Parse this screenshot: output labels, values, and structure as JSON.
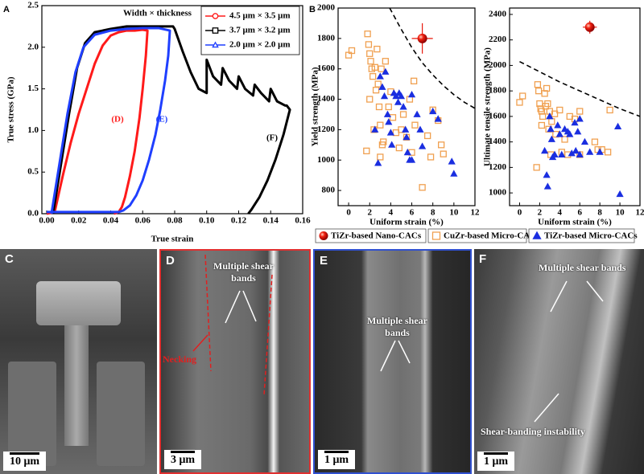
{
  "chart_data": [
    {
      "type": "line",
      "panel_label": "A",
      "xlabel": "True strain",
      "ylabel": "True stress (GPa)",
      "xlim": [
        -0.003,
        0.16
      ],
      "ylim": [
        0,
        2.5
      ],
      "xticks": [
        {
          "value": 0,
          "label": "0.00"
        },
        {
          "value": 0.02,
          "label": "0.02"
        },
        {
          "value": 0.04,
          "label": "0.04"
        },
        {
          "value": 0.06,
          "label": "0.06"
        },
        {
          "value": 0.08,
          "label": "0.08"
        },
        {
          "value": 0.1,
          "label": "0.10"
        },
        {
          "value": 0.12,
          "label": "0.12"
        },
        {
          "value": 0.14,
          "label": "0.14"
        },
        {
          "value": 0.16,
          "label": "0.16"
        }
      ],
      "yticks": [
        {
          "value": 0,
          "label": "0.0"
        },
        0.5,
        {
          "value": 1,
          "label": "1.0"
        },
        1.5,
        {
          "value": 2,
          "label": "2.0"
        },
        2.5
      ],
      "legend_title": "Width × thickness",
      "legend": "upper right",
      "series": [
        {
          "name": "4.5 μm × 3.5 μm",
          "color": "#ff1a1a",
          "marker": "circle",
          "x": [
            0,
            0.005,
            0.01,
            0.015,
            0.02,
            0.025,
            0.03,
            0.035,
            0.04,
            0.045,
            0.05,
            0.055,
            0.06,
            0.063,
            0.062,
            0.06,
            0.058,
            0.055,
            0.052,
            0.049,
            0.047,
            0.045,
            0.042
          ],
          "values": [
            0,
            0.02,
            0.45,
            0.85,
            1.2,
            1.5,
            1.8,
            2.02,
            2.14,
            2.18,
            2.2,
            2.2,
            2.21,
            2.2,
            1.9,
            1.5,
            1.15,
            0.75,
            0.45,
            0.2,
            0.08,
            0.02,
            0
          ]
        },
        {
          "name": "3.7 μm × 3.2 μm",
          "color": "#000000",
          "marker": "square",
          "x": [
            0.004,
            0.009,
            0.014,
            0.019,
            0.024,
            0.03,
            0.04,
            0.05,
            0.06,
            0.07,
            0.079,
            0.08,
            0.085,
            0.09,
            0.095,
            0.1,
            0.1,
            0.104,
            0.109,
            0.11,
            0.114,
            0.119,
            0.12,
            0.124,
            0.129,
            0.13,
            0.134,
            0.139,
            0.14,
            0.144,
            0.149,
            0.15,
            0.152,
            0.148,
            0.143,
            0.138,
            0.133,
            0.128,
            0.126
          ],
          "values": [
            0,
            0.6,
            1.2,
            1.75,
            2.05,
            2.18,
            2.22,
            2.25,
            2.25,
            2.25,
            2.25,
            2.22,
            1.95,
            1.7,
            1.5,
            1.45,
            1.85,
            1.65,
            1.55,
            1.75,
            1.6,
            1.5,
            1.65,
            1.5,
            1.42,
            1.55,
            1.45,
            1.35,
            1.5,
            1.35,
            1.3,
            1.3,
            1.25,
            0.95,
            0.65,
            0.4,
            0.2,
            0.05,
            0
          ]
        },
        {
          "name": "2.0 μm × 2.0 μm",
          "color": "#1f3fff",
          "marker": "triangle",
          "x": [
            0.003,
            0.008,
            0.013,
            0.018,
            0.023,
            0.03,
            0.04,
            0.05,
            0.06,
            0.07,
            0.077,
            0.076,
            0.074,
            0.071,
            0.068,
            0.064,
            0.06,
            0.056,
            0.052,
            0.048,
            0.045,
            0.043,
            0.02,
            0
          ],
          "values": [
            0,
            0.6,
            1.2,
            1.7,
            2.0,
            2.15,
            2.2,
            2.22,
            2.23,
            2.23,
            2.2,
            1.9,
            1.6,
            1.25,
            0.95,
            0.65,
            0.4,
            0.22,
            0.1,
            0.04,
            0.02,
            0.02,
            0.02,
            0.02
          ]
        }
      ],
      "annotations": [
        {
          "text": "(D)",
          "color": "#ff1a1a"
        },
        {
          "text": "(E)",
          "color": "#1f3fff"
        },
        {
          "text": "(F)",
          "color": "#000000"
        }
      ]
    },
    {
      "type": "scatter",
      "panel_label": "B",
      "xlabel": "Uniform strain (%)",
      "ylabel": "Yield strength (MPa)",
      "xlim": [
        -1,
        12
      ],
      "ylim": [
        700,
        2000
      ],
      "xticks": [
        0,
        2,
        4,
        6,
        8,
        10,
        12
      ],
      "yticks": [
        800,
        1000,
        1200,
        1400,
        1600,
        1800,
        2000
      ],
      "legend": "below",
      "series": [
        {
          "name": "TiZr-based Nano-CACs",
          "color": "#e8180c",
          "marker": "circle",
          "filled": true,
          "x": [
            7
          ],
          "values": [
            1800
          ],
          "xerr": [
            1
          ],
          "yerr": [
            100
          ]
        },
        {
          "name": "CuZr-based Micro-CACs",
          "color": "#f0a050",
          "marker": "square",
          "filled": false,
          "x": [
            0,
            0.3,
            1.8,
            1.9,
            2,
            2.1,
            2.2,
            2.3,
            2.5,
            2.7,
            2.8,
            2.6,
            2.4,
            2.9,
            3.1,
            3.5,
            3,
            3.3,
            3.2,
            3,
            1.7,
            2,
            3.8,
            4,
            4.2,
            4.5,
            5,
            5.2,
            5.5,
            6,
            6.2,
            6.3,
            7,
            7.5,
            7.8,
            8,
            8.5,
            8.8,
            9,
            4.8,
            5.8
          ],
          "values": [
            1690,
            1720,
            1830,
            1760,
            1700,
            1650,
            1600,
            1550,
            1610,
            1730,
            1500,
            1460,
            1200,
            1350,
            1600,
            1650,
            1230,
            1120,
            1100,
            1020,
            1060,
            1400,
            1350,
            1450,
            1280,
            1180,
            1200,
            1300,
            1150,
            1050,
            1520,
            1230,
            820,
            1160,
            1020,
            1330,
            1260,
            1100,
            1040,
            1080,
            1400
          ]
        },
        {
          "name": "TiZr-based Micro-CACs",
          "color": "#1a2ee0",
          "marker": "triangle",
          "filled": true,
          "x": [
            2.5,
            2.8,
            3,
            3.2,
            3.4,
            3.5,
            3.7,
            3.8,
            4,
            4.1,
            4.3,
            4.5,
            4.7,
            4.8,
            5,
            5.2,
            5.4,
            5.5,
            5.6,
            5.8,
            6,
            6,
            6.5,
            6.8,
            7,
            8,
            8.5,
            9.8,
            10
          ],
          "values": [
            1200,
            980,
            1550,
            1480,
            1420,
            1580,
            1300,
            1250,
            1180,
            1100,
            1440,
            1420,
            1380,
            1440,
            1420,
            1350,
            1200,
            1150,
            1050,
            1000,
            1430,
            1000,
            1300,
            1200,
            1090,
            1320,
            1270,
            990,
            910
          ]
        }
      ],
      "bound": {
        "x": [
          3.9,
          5,
          6,
          7,
          8,
          9,
          10,
          11,
          12
        ],
        "values": [
          2000,
          1860,
          1740,
          1640,
          1560,
          1490,
          1430,
          1380,
          1340
        ]
      }
    },
    {
      "type": "scatter",
      "xlabel": "Uniform strain (%)",
      "ylabel": "Ultimate tensile strength (MPa)",
      "xlim": [
        -1,
        12
      ],
      "ylim": [
        900,
        2450
      ],
      "xticks": [
        0,
        2,
        4,
        6,
        8,
        10,
        12
      ],
      "yticks": [
        1000,
        1200,
        1400,
        1600,
        1800,
        2000,
        2200,
        2400
      ],
      "series": [
        {
          "color": "#e8180c",
          "marker": "circle",
          "filled": true,
          "x": [
            7
          ],
          "values": [
            2300
          ],
          "xerr": [
            0.7
          ],
          "yerr": [
            50
          ]
        },
        {
          "color": "#f0a050",
          "marker": "square",
          "filled": false,
          "x": [
            0,
            0.3,
            1.8,
            1.9,
            2,
            2.1,
            2.2,
            2.3,
            2.5,
            2.6,
            2.7,
            2.8,
            3,
            3.2,
            3.5,
            3.6,
            2.9,
            3.1,
            1.7,
            2.2,
            4,
            4.2,
            4.5,
            5,
            5.5,
            6,
            6,
            7.5,
            7.8,
            8.2,
            8.8,
            9,
            4.8
          ],
          "values": [
            1710,
            1760,
            1850,
            1800,
            1700,
            1660,
            1640,
            1600,
            1780,
            1680,
            1820,
            1700,
            1640,
            1560,
            1620,
            1460,
            1500,
            1300,
            1200,
            1530,
            1650,
            1320,
            1420,
            1600,
            1580,
            1640,
            1300,
            1400,
            1340,
            1340,
            1320,
            1650,
            1300
          ]
        },
        {
          "color": "#1a2ee0",
          "marker": "triangle",
          "filled": true,
          "x": [
            2.5,
            2.7,
            2.8,
            3,
            3.1,
            3.2,
            3.3,
            3.5,
            3.8,
            4,
            4.2,
            4.5,
            4.8,
            5,
            5.2,
            5.5,
            5.6,
            5.8,
            6,
            6,
            6.5,
            7,
            8,
            9.8,
            10
          ],
          "values": [
            1330,
            1140,
            1050,
            1600,
            1500,
            1420,
            1280,
            1300,
            1530,
            1460,
            1300,
            1500,
            1480,
            1460,
            1310,
            1550,
            1330,
            1480,
            1580,
            1300,
            1400,
            1320,
            1320,
            1520,
            990
          ]
        }
      ],
      "bound": {
        "x": [
          0,
          2,
          4,
          6,
          8,
          10,
          12
        ],
        "values": [
          2030,
          1950,
          1870,
          1800,
          1730,
          1660,
          1600
        ]
      }
    }
  ],
  "micrographs": [
    {
      "label": "C",
      "scale_bar": "10 μm"
    },
    {
      "label": "D",
      "texts": [
        "Multiple shear bands",
        "Necking"
      ],
      "scale_bar": "3 μm"
    },
    {
      "label": "E",
      "texts": [
        "Multiple shear bands"
      ],
      "scale_bar": "1 μm"
    },
    {
      "label": "F",
      "texts": [
        "Multiple shear bands",
        "Shear-banding instability"
      ],
      "scale_bar": "1 μm"
    }
  ]
}
